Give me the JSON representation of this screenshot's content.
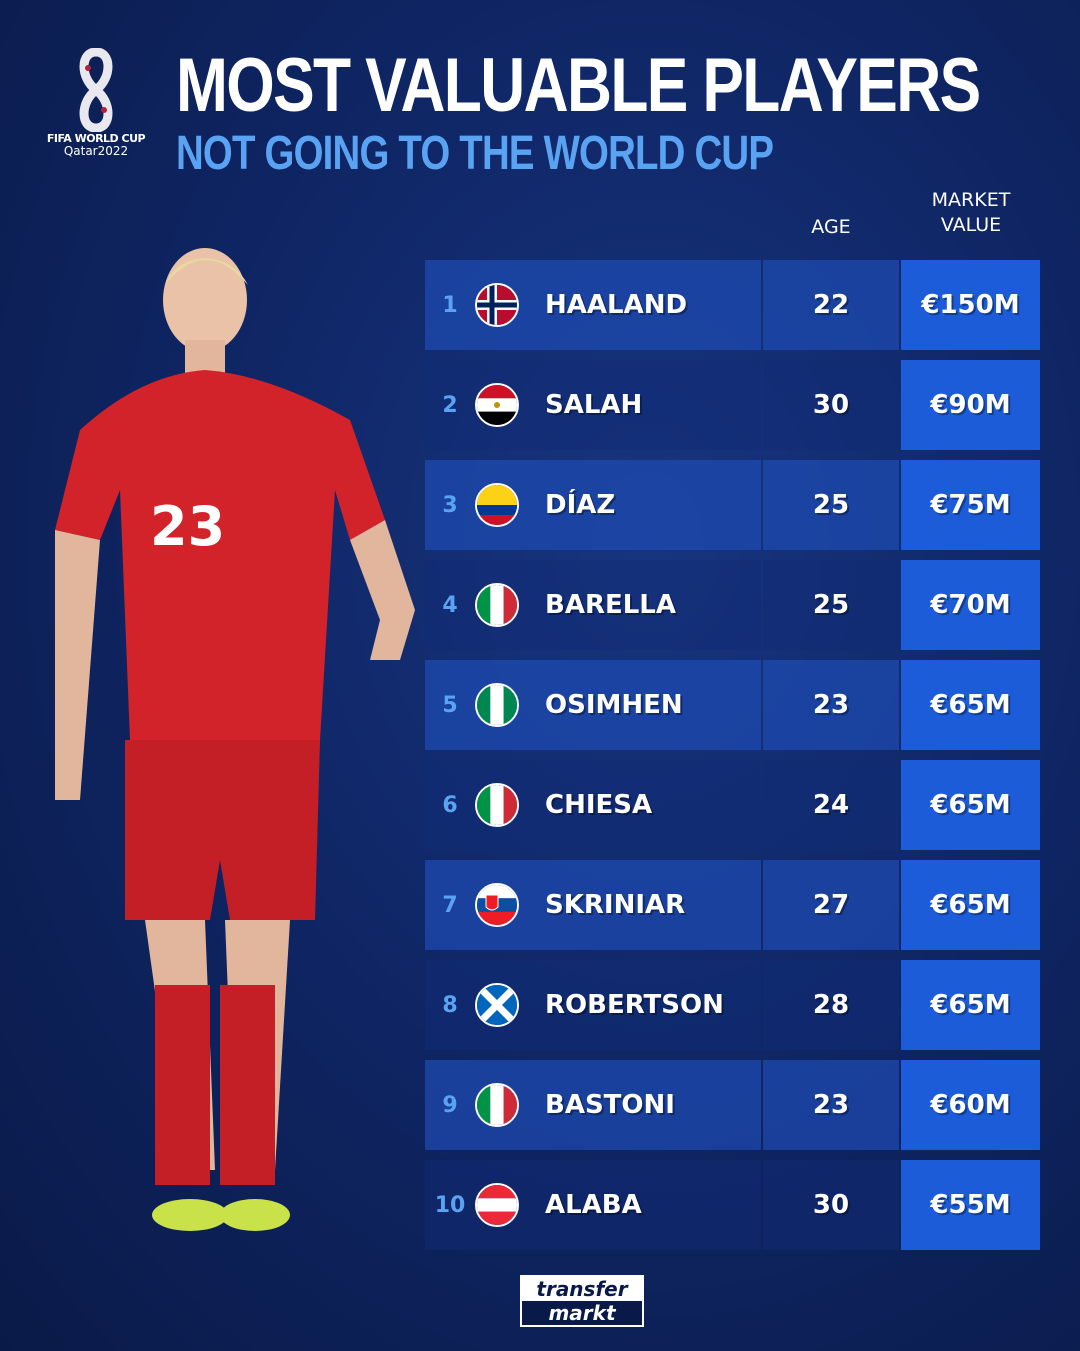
{
  "logo": {
    "line1": "FIFA WORLD CUP",
    "line2": "Qatar2022"
  },
  "header": {
    "title": "MOST VALUABLE PLAYERS",
    "subtitle": "NOT GOING TO THE WORLD CUP"
  },
  "columns": {
    "age": "AGE",
    "market_value_1": "MARKET",
    "market_value_2": "VALUE"
  },
  "colors": {
    "accent": "#5aa3f2",
    "value_cell": "#1d5cd8",
    "background": "#0f2563"
  },
  "players": [
    {
      "rank": "1",
      "flag": "norway",
      "name": "HAALAND",
      "age": "22",
      "value": "€150M"
    },
    {
      "rank": "2",
      "flag": "egypt",
      "name": "SALAH",
      "age": "30",
      "value": "€90M"
    },
    {
      "rank": "3",
      "flag": "colombia",
      "name": "DÍAZ",
      "age": "25",
      "value": "€75M"
    },
    {
      "rank": "4",
      "flag": "italy",
      "name": "BARELLA",
      "age": "25",
      "value": "€70M"
    },
    {
      "rank": "5",
      "flag": "nigeria",
      "name": "OSIMHEN",
      "age": "23",
      "value": "€65M"
    },
    {
      "rank": "6",
      "flag": "italy",
      "name": "CHIESA",
      "age": "24",
      "value": "€65M"
    },
    {
      "rank": "7",
      "flag": "slovakia",
      "name": "SKRINIAR",
      "age": "27",
      "value": "€65M"
    },
    {
      "rank": "8",
      "flag": "scotland",
      "name": "ROBERTSON",
      "age": "28",
      "value": "€65M"
    },
    {
      "rank": "9",
      "flag": "italy",
      "name": "BASTONI",
      "age": "23",
      "value": "€60M"
    },
    {
      "rank": "10",
      "flag": "austria",
      "name": "ALABA",
      "age": "30",
      "value": "€55M"
    }
  ],
  "footer": {
    "brand_top": "transfer",
    "brand_bottom": "markt"
  }
}
